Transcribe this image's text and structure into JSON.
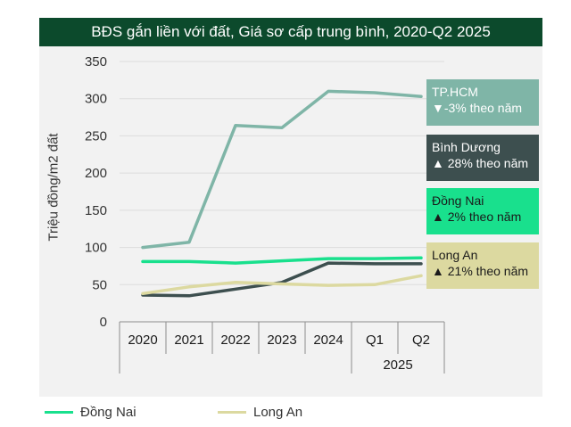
{
  "chart_data": {
    "type": "line",
    "title": "BĐS gắn liền với đất, Giá sơ cấp trung bình, 2020-Q2 2025",
    "ylabel": "Triệu đồng/m2 đất",
    "ylim": [
      0,
      350
    ],
    "yticks": [
      0,
      50,
      100,
      150,
      200,
      250,
      300,
      350
    ],
    "categories": [
      "2020",
      "2021",
      "2022",
      "2023",
      "2024",
      "Q1",
      "Q2"
    ],
    "group_label": "2025",
    "grid": true,
    "series": [
      {
        "name": "TP.HCM",
        "color": "#7fb5a7",
        "values": [
          100,
          107,
          264,
          261,
          310,
          308,
          303
        ]
      },
      {
        "name": "Bình Dương",
        "color": "#3d4f4f",
        "values": [
          36,
          35,
          44,
          53,
          79,
          78,
          78
        ]
      },
      {
        "name": "Đồng Nai",
        "color": "#19e08d",
        "values": [
          81,
          81,
          79,
          82,
          85,
          85,
          86
        ]
      },
      {
        "name": "Long An",
        "color": "#dcd9a0",
        "values": [
          38,
          47,
          53,
          51,
          49,
          50,
          62
        ]
      }
    ],
    "callouts": [
      {
        "name": "TP.HCM",
        "change": "▼-3% theo năm",
        "bg": "#7fb5a7",
        "fg": "#ffffff"
      },
      {
        "name": "Bình Dương",
        "change": "▲ 28% theo năm",
        "bg": "#3d4f4f",
        "fg": "#ffffff"
      },
      {
        "name": "Đồng Nai",
        "change": "▲ 2% theo năm",
        "bg": "#19e08d",
        "fg": "#1a1a1a"
      },
      {
        "name": "Long An",
        "change": "▲ 21% theo năm",
        "bg": "#dcd9a0",
        "fg": "#1a1a1a"
      }
    ],
    "legend": [
      {
        "label": "Đồng Nai",
        "color": "#19e08d"
      },
      {
        "label": "Long An",
        "color": "#dcd9a0"
      }
    ]
  }
}
